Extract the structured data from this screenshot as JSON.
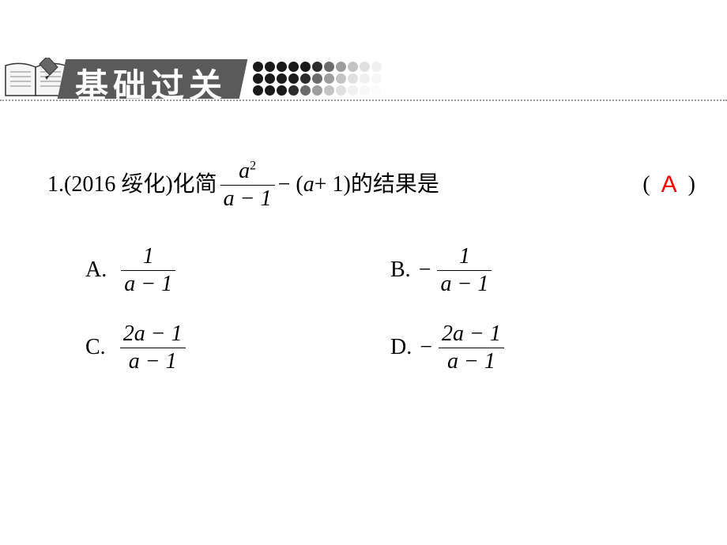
{
  "header": {
    "title": "基础过关",
    "title_font": "STXingkai",
    "title_color": "#ffffff",
    "block_color": "#5a5a5a",
    "dot_colors_row1": [
      "#1a1a1a",
      "#1a1a1a",
      "#1a1a1a",
      "#1a1a1a",
      "#1a1a1a",
      "#2c2c2c",
      "#6b6b6b",
      "#9d9d9d",
      "#c4c4c4",
      "#e0e0e0",
      "#f0f0f0"
    ],
    "dot_colors_row2": [
      "#1a1a1a",
      "#1a1a1a",
      "#1a1a1a",
      "#1a1a1a",
      "#2c2c2c",
      "#6b6b6b",
      "#9d9d9d",
      "#c4c4c4",
      "#e0e0e0",
      "#f0f0f0",
      "#f7f7f7"
    ],
    "dot_colors_row3": [
      "#1a1a1a",
      "#1a1a1a",
      "#1a1a1a",
      "#2c2c2c",
      "#6b6b6b",
      "#9d9d9d",
      "#c4c4c4",
      "#e0e0e0",
      "#f0f0f0",
      "#f7f7f7",
      "#fbfbfb"
    ]
  },
  "question": {
    "number": "1.",
    "source": "(2016 绥化)",
    "prefix_text": "化简",
    "main_frac": {
      "num": "a",
      "num_sup": "2",
      "den": "a − 1"
    },
    "mid_text": " − ( ",
    "mid_expr": "a",
    "mid_text2": " + 1 )",
    "suffix_text": "的结果是",
    "answer": "A",
    "answer_color": "#ff0000",
    "paren_open": "(",
    "paren_close": ")"
  },
  "options": {
    "A": {
      "label": "A.",
      "neg": "",
      "num": "1",
      "den": "a − 1"
    },
    "B": {
      "label": "B.",
      "neg": "−",
      "num": "1",
      "den": "a − 1"
    },
    "C": {
      "label": "C.",
      "neg": "",
      "num": "2a − 1",
      "den": "a − 1"
    },
    "D": {
      "label": "D.",
      "neg": "−",
      "num": "2a − 1",
      "den": "a − 1"
    }
  },
  "colors": {
    "background": "#ffffff",
    "text": "#000000"
  }
}
